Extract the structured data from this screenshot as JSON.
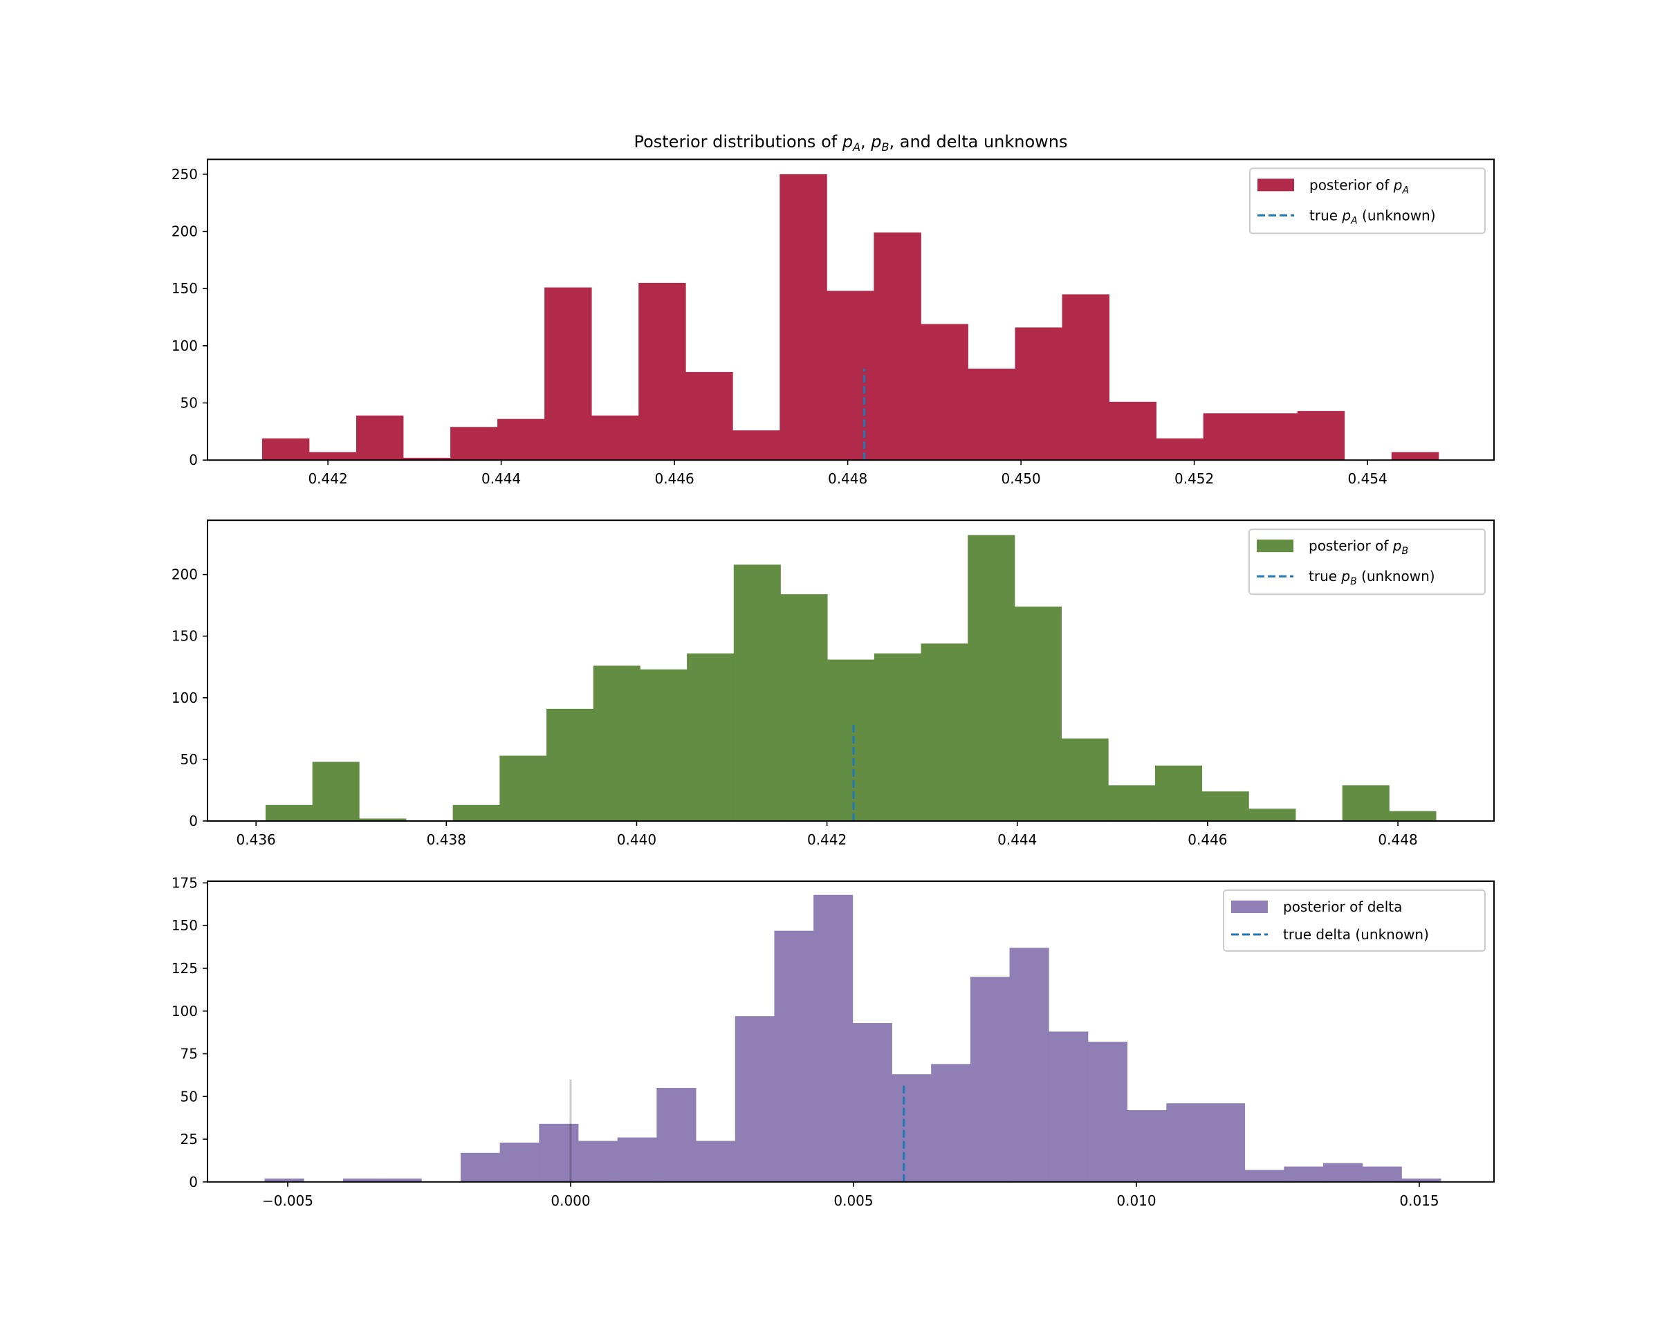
{
  "title": {
    "prefix": "Posterior distributions of ",
    "pa_base": "p",
    "pa_sub": "A",
    "sep1": ", ",
    "pb_base": "p",
    "pb_sub": "B",
    "suffix": ", and delta unknowns"
  },
  "colors": {
    "pA": "#B22A49",
    "pB": "#628D42",
    "delta": "#8F7FB4",
    "true_line": "#1F77B4",
    "zero_line": "#000000",
    "legend_border": "#CCCCCC"
  },
  "chart_data": [
    {
      "type": "bar",
      "id": "pA",
      "subtype": "histogram",
      "title": "Posterior distributions of p_A, p_B, and delta unknowns",
      "xlabel": "",
      "ylabel": "",
      "bin_start": 0.44124,
      "bin_end": 0.45482,
      "values": [
        19,
        7,
        39,
        2,
        29,
        36,
        151,
        39,
        155,
        77,
        26,
        250,
        148,
        199,
        119,
        80,
        116,
        145,
        51,
        19,
        41,
        41,
        43,
        0,
        7
      ],
      "xlim": [
        0.44061,
        0.45546
      ],
      "ylim": [
        0,
        263
      ],
      "xticks": [
        0.442,
        0.444,
        0.446,
        0.448,
        0.45,
        0.452,
        0.454
      ],
      "xtick_labels": [
        "0.442",
        "0.444",
        "0.446",
        "0.448",
        "0.450",
        "0.452",
        "0.454"
      ],
      "yticks": [
        0,
        50,
        100,
        150,
        200,
        250
      ],
      "ytick_labels": [
        "0",
        "50",
        "100",
        "150",
        "200",
        "250"
      ],
      "true_value": {
        "x": 0.44819,
        "height": 80
      },
      "legend": {
        "position": "upper-right",
        "entries": [
          {
            "kind": "patch",
            "text": "posterior of ",
            "math_base": "p",
            "math_sub": "A",
            "tail": ""
          },
          {
            "kind": "dashed",
            "text": "true ",
            "math_base": "p",
            "math_sub": "A",
            "tail": " (unknown)"
          }
        ]
      },
      "grid": false
    },
    {
      "type": "bar",
      "id": "pB",
      "subtype": "histogram",
      "bin_start": 0.4361,
      "bin_end": 0.4484,
      "values": [
        13,
        48,
        2,
        0,
        13,
        53,
        91,
        126,
        123,
        136,
        208,
        184,
        131,
        136,
        144,
        232,
        174,
        67,
        29,
        45,
        24,
        10,
        0,
        29,
        8
      ],
      "xlim": [
        0.43549,
        0.44901
      ],
      "ylim": [
        0,
        244
      ],
      "xticks": [
        0.436,
        0.438,
        0.44,
        0.442,
        0.444,
        0.446,
        0.448
      ],
      "xtick_labels": [
        "0.436",
        "0.438",
        "0.440",
        "0.442",
        "0.444",
        "0.446",
        "0.448"
      ],
      "yticks": [
        0,
        50,
        100,
        150,
        200
      ],
      "ytick_labels": [
        "0",
        "50",
        "100",
        "150",
        "200"
      ],
      "true_value": {
        "x": 0.44228,
        "height": 80
      },
      "legend": {
        "position": "upper-right",
        "entries": [
          {
            "kind": "patch",
            "text": "posterior of ",
            "math_base": "p",
            "math_sub": "B",
            "tail": ""
          },
          {
            "kind": "dashed",
            "text": "true ",
            "math_base": "p",
            "math_sub": "B",
            "tail": " (unknown)"
          }
        ]
      },
      "grid": false
    },
    {
      "type": "bar",
      "id": "delta",
      "subtype": "histogram",
      "bin_start": -0.005409,
      "bin_end": 0.01538,
      "values": [
        2,
        0,
        2,
        2,
        0,
        17,
        23,
        34,
        24,
        26,
        55,
        24,
        97,
        147,
        168,
        93,
        63,
        69,
        120,
        137,
        88,
        82,
        42,
        46,
        46,
        7,
        9,
        11,
        9,
        2
      ],
      "xlim": [
        -0.006418,
        0.01632
      ],
      "ylim": [
        0,
        176
      ],
      "xticks": [
        -0.005,
        0.0,
        0.005,
        0.01,
        0.015
      ],
      "xtick_labels": [
        "−0.005",
        "0.000",
        "0.005",
        "0.010",
        "0.015"
      ],
      "yticks": [
        0,
        25,
        50,
        75,
        100,
        125,
        150,
        175
      ],
      "ytick_labels": [
        "0",
        "25",
        "50",
        "75",
        "100",
        "125",
        "150",
        "175"
      ],
      "true_value": {
        "x": 0.00589,
        "height": 57
      },
      "zero_line": {
        "x": 0.0,
        "height": 60
      },
      "legend": {
        "position": "upper-right",
        "entries": [
          {
            "kind": "patch",
            "text": "posterior of delta",
            "math_base": "",
            "math_sub": "",
            "tail": ""
          },
          {
            "kind": "dashed",
            "text": "true delta (unknown)",
            "math_base": "",
            "math_sub": "",
            "tail": ""
          }
        ]
      },
      "grid": false
    }
  ]
}
